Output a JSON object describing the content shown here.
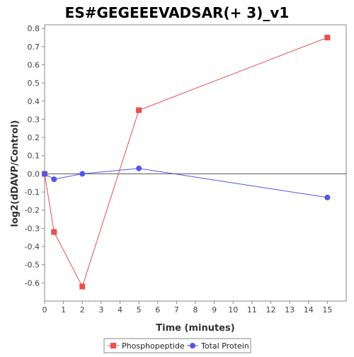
{
  "chart_data": {
    "type": "line",
    "title": "ES#GEGEEEVADSAR(+ 3)_v1",
    "xlabel": "Time (minutes)",
    "ylabel": "log2(dDAVP/Control)",
    "xlim": [
      0,
      16
    ],
    "ylim": [
      -0.7,
      0.82
    ],
    "x_ticks": [
      "0",
      "1",
      "2",
      "3",
      "4",
      "5",
      "6",
      "7",
      "8",
      "9",
      "10",
      "11",
      "12",
      "13",
      "14",
      "15"
    ],
    "y_ticks": [
      "-0.6",
      "-0.5",
      "-0.4",
      "-0.3",
      "-0.2",
      "-0.1",
      "0.0",
      "0.1",
      "0.2",
      "0.3",
      "0.4",
      "0.5",
      "0.6",
      "0.7",
      "0.8"
    ],
    "grid": false,
    "zero_line": true,
    "legend_position": "bottom",
    "series": [
      {
        "name": "Phosphopeptide",
        "color": "#e8504f",
        "marker": "square",
        "x": [
          0,
          0.5,
          2,
          5,
          15
        ],
        "y": [
          0.0,
          -0.32,
          -0.62,
          0.35,
          0.75
        ]
      },
      {
        "name": "Total Protein",
        "color": "#5555e8",
        "marker": "circle",
        "x": [
          0,
          0.5,
          2,
          5,
          15
        ],
        "y": [
          0.0,
          -0.03,
          0.0,
          0.03,
          -0.13
        ]
      }
    ]
  }
}
